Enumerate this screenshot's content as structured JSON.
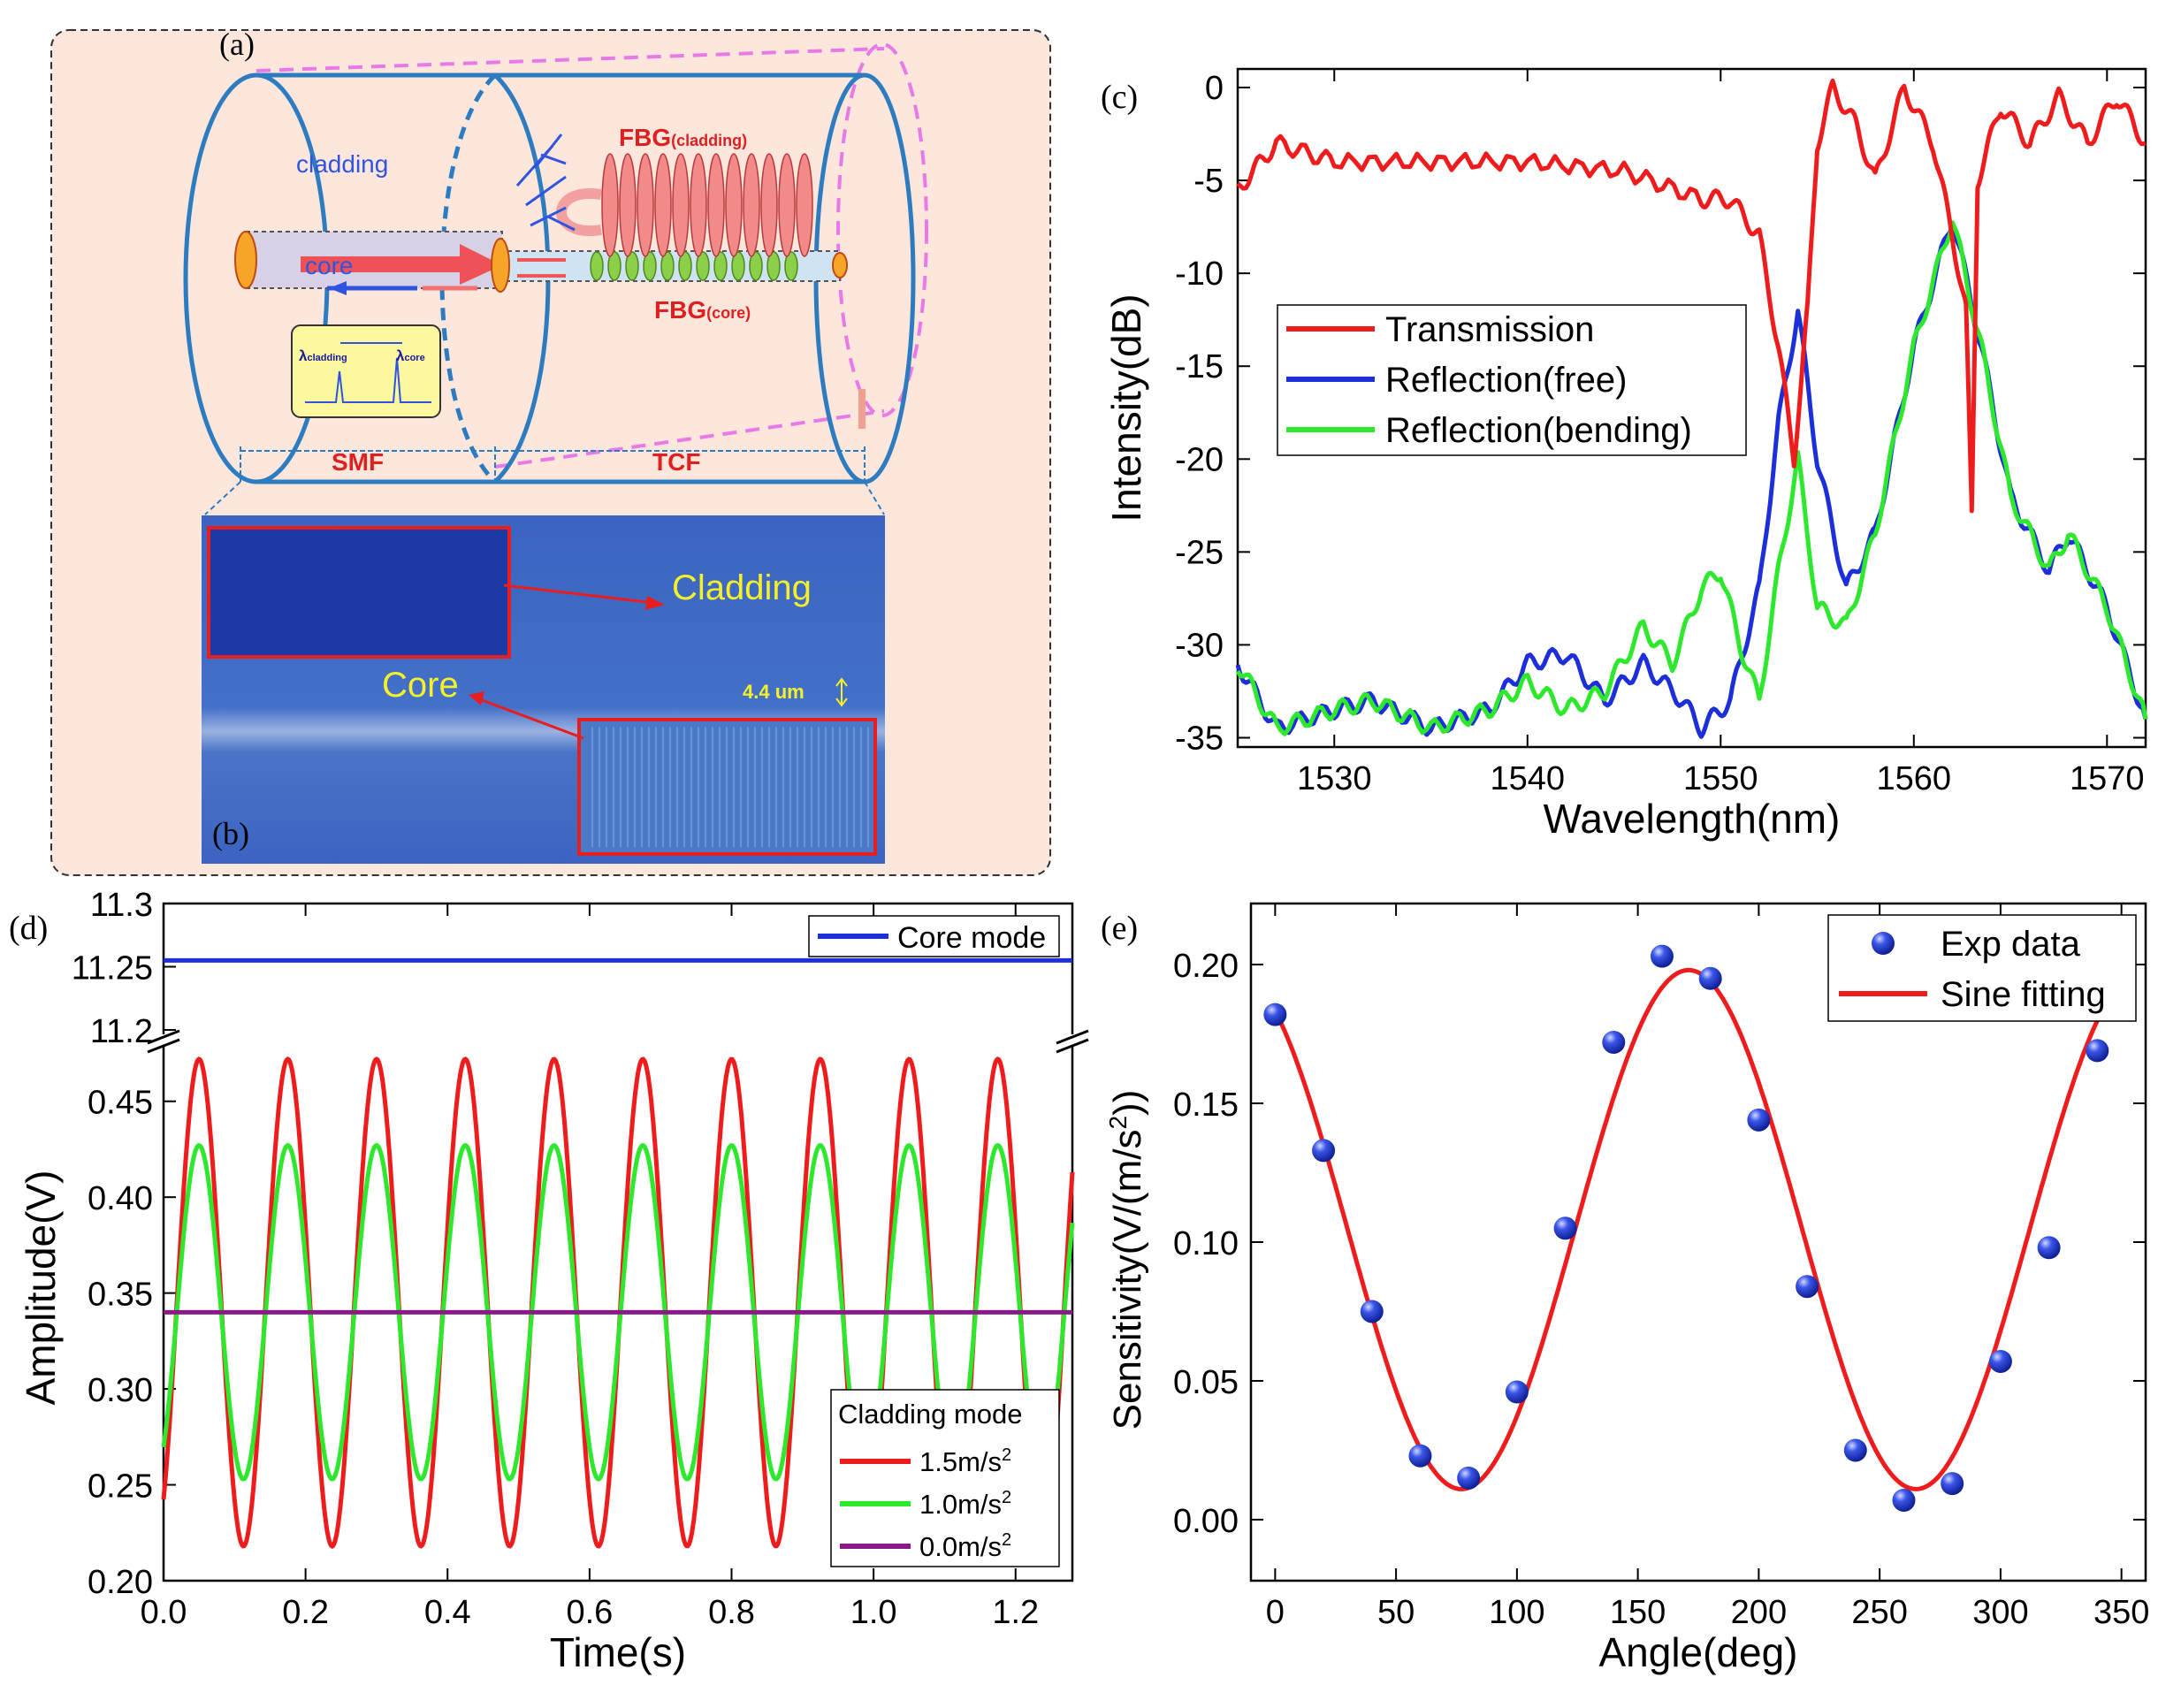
{
  "panel_labels": {
    "a": "(a)",
    "b": "(b)",
    "c": "(c)",
    "d": "(d)",
    "e": "(e)"
  },
  "schematic": {
    "cladding": "cladding",
    "core": "core",
    "fbg_cladding_main": "FBG",
    "fbg_cladding_sub": "(cladding)",
    "fbg_core_main": "FBG",
    "fbg_core_sub": "(core)",
    "lambda_cladding_sub": "cladding",
    "lambda_core_sub": "core",
    "lambda_symbol": "λ",
    "smf": "SMF",
    "tcf": "TCF"
  },
  "micrograph": {
    "cladding": "Cladding",
    "core": "Core",
    "size": "4.4 um"
  },
  "colors": {
    "red": "#ee1c1c",
    "blue": "#1c2fd8",
    "green": "#2ee82e",
    "purple": "#8a1a8a",
    "sphere": "#1a2fd0",
    "schematic_bg": "#fde6dc"
  },
  "chart_data": [
    {
      "id": "c",
      "type": "line",
      "xlabel": "Wavelength(nm)",
      "ylabel": "Intensity(dB)",
      "xlim": [
        1525,
        1572
      ],
      "ylim": [
        -35.5,
        1
      ],
      "xticks": [
        1530,
        1540,
        1550,
        1560,
        1570
      ],
      "yticks": [
        0,
        -5,
        -10,
        -15,
        -20,
        -25,
        -30,
        -35
      ],
      "legend": [
        "Transmission",
        "Reflection(free)",
        "Reflection(bending)"
      ],
      "series": [
        {
          "name": "Transmission",
          "x": [
            1525,
            1527,
            1530,
            1535,
            1540,
            1545,
            1549,
            1550.5,
            1552,
            1553,
            1553.8,
            1554.5,
            1555,
            1555.8,
            1557,
            1558,
            1559.5,
            1561,
            1562,
            1562.7,
            1563,
            1563.3,
            1564.5,
            1566,
            1567.5,
            1569,
            1570.5,
            1572
          ],
          "y": [
            -5.5,
            -3,
            -4,
            -4,
            -4,
            -4.5,
            -6,
            -6,
            -8,
            -14,
            -20,
            -12,
            -3,
            0,
            -2,
            -5,
            0,
            -3,
            -8,
            -12,
            -23,
            -5,
            -1,
            -3,
            -0.5,
            -3,
            -0.5,
            -3
          ]
        },
        {
          "name": "Reflection(free)",
          "x": [
            1525,
            1527,
            1530,
            1532,
            1535,
            1538,
            1540,
            1542,
            1544,
            1546,
            1548,
            1549,
            1550.5,
            1552,
            1553,
            1554,
            1555,
            1556.5,
            1558,
            1560,
            1562,
            1563.5,
            1565,
            1567,
            1568,
            1570,
            1572
          ],
          "y": [
            -31,
            -34.5,
            -33.5,
            -33,
            -34.5,
            -33.5,
            -31,
            -30.5,
            -33,
            -31,
            -33,
            -34.5,
            -33,
            -27,
            -18,
            -12,
            -20,
            -27,
            -24,
            -14,
            -7,
            -14,
            -22,
            -26,
            -24,
            -28,
            -34
          ]
        },
        {
          "name": "Reflection(bending)",
          "x": [
            1525,
            1527,
            1530,
            1532,
            1535,
            1538,
            1540,
            1542,
            1544,
            1546,
            1547.5,
            1549,
            1550,
            1551,
            1552,
            1553,
            1554,
            1555,
            1556.5,
            1558,
            1560,
            1562,
            1563.5,
            1565,
            1567,
            1568,
            1570,
            1572
          ],
          "y": [
            -31,
            -34.5,
            -33.5,
            -33,
            -34.5,
            -33.5,
            -32,
            -33.5,
            -32.5,
            -29,
            -31,
            -27,
            -26,
            -30,
            -33,
            -26,
            -20,
            -28,
            -29,
            -24,
            -14,
            -7,
            -14,
            -22,
            -26,
            -24,
            -28,
            -34
          ]
        }
      ]
    },
    {
      "id": "d",
      "type": "line",
      "xlabel": "Time(s)",
      "ylabel": "Amplitude(V)",
      "xlim": [
        0,
        1.28
      ],
      "xticks": [
        0.0,
        0.2,
        0.4,
        0.6,
        0.8,
        1.0,
        1.2
      ],
      "upper_ylim": [
        11.2,
        11.3
      ],
      "upper_yticks": [
        "11.3",
        "11.25",
        "11.2"
      ],
      "lower_ylim": [
        0.2,
        0.478
      ],
      "lower_yticks": [
        0.2,
        0.25,
        0.3,
        0.35,
        0.4,
        0.45
      ],
      "upper_legend": [
        "Core mode"
      ],
      "lower_legend_title": "Cladding mode",
      "lower_legend": [
        "1.5m/s",
        "1.0m/s",
        "0.0m/s"
      ],
      "legend_unit_superscript": "2",
      "signal_frequency_hz": 8,
      "series": [
        {
          "name": "Core mode",
          "axis": "upper",
          "constant": 11.255
        },
        {
          "name": "1.5m/s2",
          "axis": "lower",
          "offset": 0.345,
          "amplitude": 0.127
        },
        {
          "name": "1.0m/s2",
          "axis": "lower",
          "offset": 0.34,
          "amplitude": 0.087
        },
        {
          "name": "0.0m/s2",
          "axis": "lower",
          "constant": 0.34
        }
      ]
    },
    {
      "id": "e",
      "type": "scatter",
      "xlabel": "Angle(deg)",
      "ylabel": "Sensitivity(V/(m/s",
      "ylabel_superscript": "2",
      "ylabel_end": "))",
      "xlim": [
        -10,
        360
      ],
      "ylim": [
        -0.022,
        0.222
      ],
      "xticks": [
        0,
        50,
        100,
        150,
        200,
        250,
        300,
        350
      ],
      "yticks": [
        0.0,
        0.05,
        0.1,
        0.15,
        0.2
      ],
      "legend": [
        "Exp data",
        "Sine fitting"
      ],
      "points": {
        "x": [
          0,
          20,
          40,
          60,
          80,
          100,
          120,
          140,
          160,
          180,
          200,
          220,
          240,
          260,
          280,
          300,
          320,
          340
        ],
        "y": [
          0.182,
          0.133,
          0.075,
          0.023,
          0.015,
          0.046,
          0.105,
          0.172,
          0.203,
          0.195,
          0.144,
          0.084,
          0.025,
          0.007,
          0.013,
          0.057,
          0.098,
          0.169
        ]
      },
      "fit": {
        "offset": 0.1045,
        "amplitude": 0.0935,
        "period_deg": 188,
        "peak_deg": 171
      }
    }
  ]
}
